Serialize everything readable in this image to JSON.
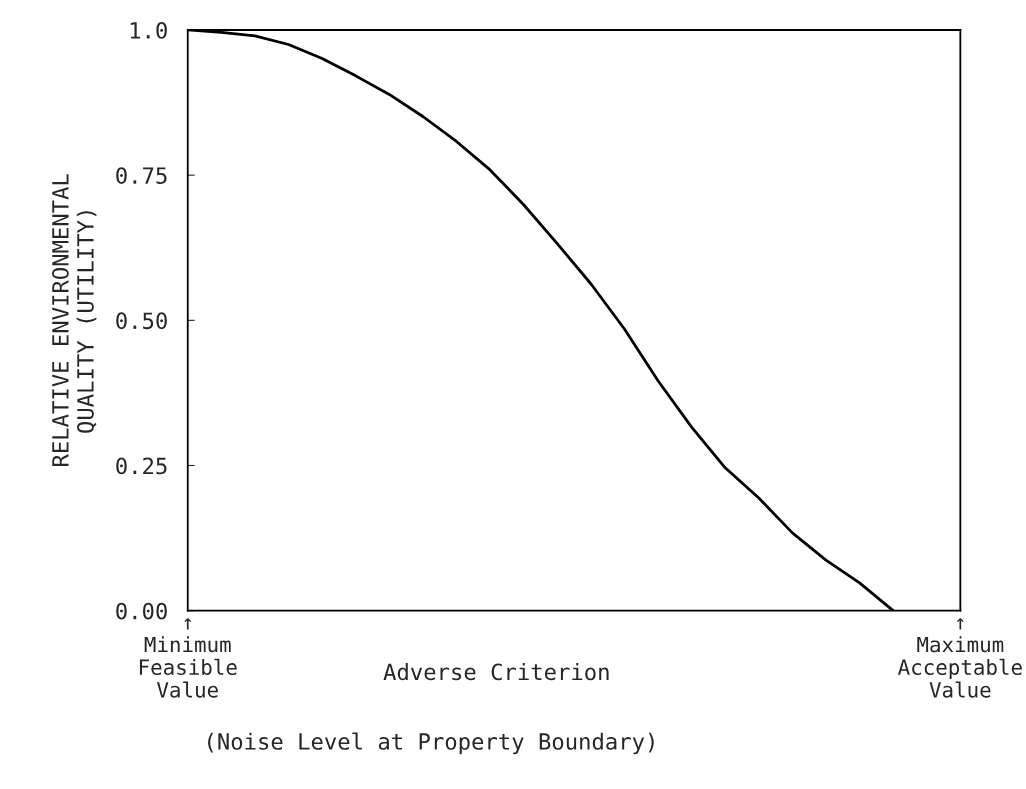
{
  "chart_data": {
    "type": "line",
    "xlabel": "Adverse Criterion",
    "ylabel": "RELATIVE ENVIRONMENTAL\nQUALITY (UTILITY)",
    "annotations": [
      "(Noise Level at Property Boundary)"
    ],
    "categories": [
      "↑\nMinimum\nFeasible\nValue",
      null,
      null,
      null,
      null,
      null,
      null,
      null,
      null,
      null,
      null,
      null,
      null,
      null,
      null,
      null,
      null,
      null,
      null,
      null,
      null,
      null,
      null,
      "↑\nMaximum\nAcceptable\nValue"
    ],
    "series": [
      {
        "color": "#000000",
        "values": [
          1.0,
          0.996,
          0.99,
          0.975,
          0.951,
          0.921,
          0.889,
          0.851,
          0.808,
          0.759,
          0.699,
          0.632,
          0.563,
          0.485,
          0.396,
          0.316,
          0.246,
          0.194,
          0.134,
          0.087,
          0.048,
          0.0,
          null,
          null
        ]
      }
    ],
    "ylim": [
      0,
      1
    ],
    "yticks": [
      {
        "value": 0,
        "label": "0.00"
      },
      {
        "value": 0.25,
        "label": "0.25"
      },
      {
        "value": 0.5,
        "label": "0.50"
      },
      {
        "value": 0.75,
        "label": "0.75"
      },
      {
        "value": 1,
        "label": "1.0"
      }
    ],
    "grid": false,
    "marker": "none",
    "line_style": "solid"
  }
}
